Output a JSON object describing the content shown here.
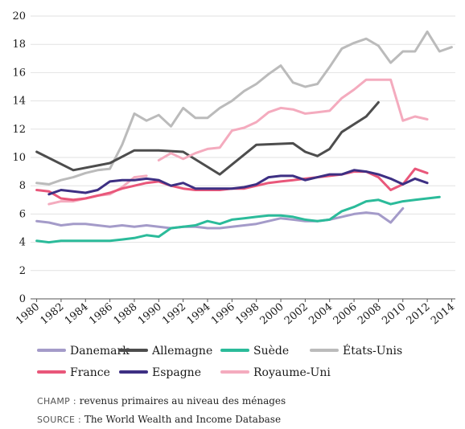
{
  "chart_data": {
    "type": "line",
    "title": "",
    "xlabel": "",
    "ylabel": "",
    "xlim": [
      1979.5,
      2014.3
    ],
    "ylim": [
      0,
      20
    ],
    "yticks": [
      "0",
      "2",
      "4",
      "6",
      "8",
      "10",
      "12",
      "14",
      "16",
      "18",
      "20"
    ],
    "xticks": [
      "1980",
      "1982",
      "1984",
      "1986",
      "1988",
      "1990",
      "1992",
      "1994",
      "1996",
      "1998",
      "2000",
      "2002",
      "2004",
      "2006",
      "2008",
      "2010",
      "2012",
      "2014"
    ],
    "grid": "horizontal",
    "legend_position": "bottom",
    "series": [
      {
        "name": "Danemark",
        "color": "#a49bc9",
        "x": [
          1980,
          1981,
          1982,
          1983,
          1984,
          1985,
          1986,
          1987,
          1988,
          1989,
          1990,
          1991,
          1992,
          1993,
          1994,
          1995,
          1996,
          1997,
          1998,
          1999,
          2000,
          2001,
          2002,
          2003,
          2004,
          2005,
          2006,
          2007,
          2008,
          2009,
          2010
        ],
        "y": [
          5.5,
          5.4,
          5.2,
          5.3,
          5.3,
          5.2,
          5.1,
          5.2,
          5.1,
          5.2,
          5.1,
          5.0,
          5.1,
          5.1,
          5.0,
          5.0,
          5.1,
          5.2,
          5.3,
          5.5,
          5.7,
          5.6,
          5.5,
          5.5,
          5.6,
          5.8,
          6.0,
          6.1,
          6.0,
          5.4,
          6.4
        ]
      },
      {
        "name": "Allemagne",
        "color": "#4d4d4d",
        "x": [
          1980,
          1983,
          1986,
          1988,
          1990,
          1992,
          1995,
          1998,
          2001,
          2002,
          2003,
          2004,
          2005,
          2007,
          2008
        ],
        "y": [
          10.4,
          9.1,
          9.6,
          10.5,
          10.5,
          10.4,
          8.8,
          10.9,
          11.0,
          10.4,
          10.1,
          10.6,
          11.8,
          12.9,
          13.9
        ]
      },
      {
        "name": "Suède",
        "color": "#2bbb9a",
        "x": [
          1980,
          1981,
          1982,
          1983,
          1984,
          1985,
          1986,
          1987,
          1988,
          1989,
          1990,
          1991,
          1992,
          1993,
          1994,
          1995,
          1996,
          1997,
          1998,
          1999,
          2000,
          2001,
          2002,
          2003,
          2004,
          2005,
          2006,
          2007,
          2008,
          2009,
          2010,
          2011,
          2012,
          2013
        ],
        "y": [
          4.1,
          4.0,
          4.1,
          4.1,
          4.1,
          4.1,
          4.1,
          4.2,
          4.3,
          4.5,
          4.4,
          5.0,
          5.1,
          5.2,
          5.5,
          5.3,
          5.6,
          5.7,
          5.8,
          5.9,
          5.9,
          5.8,
          5.6,
          5.5,
          5.6,
          6.2,
          6.5,
          6.9,
          7.0,
          6.7,
          6.9,
          7.0,
          7.1,
          7.2
        ]
      },
      {
        "name": "États-Unis",
        "color": "#bbbbbb",
        "x": [
          1980,
          1981,
          1982,
          1983,
          1984,
          1985,
          1986,
          1987,
          1988,
          1989,
          1990,
          1991,
          1992,
          1993,
          1994,
          1995,
          1996,
          1997,
          1998,
          1999,
          2000,
          2001,
          2002,
          2003,
          2004,
          2005,
          2006,
          2007,
          2008,
          2009,
          2010,
          2011,
          2012,
          2013,
          2014
        ],
        "y": [
          8.2,
          8.1,
          8.4,
          8.6,
          8.9,
          9.1,
          9.2,
          10.9,
          13.1,
          12.6,
          13.0,
          12.2,
          13.5,
          12.8,
          12.8,
          13.5,
          14.0,
          14.7,
          15.2,
          15.9,
          16.5,
          15.3,
          15.0,
          15.2,
          16.4,
          17.7,
          18.1,
          18.4,
          17.9,
          16.7,
          17.5,
          17.5,
          18.9,
          17.5,
          17.8
        ]
      },
      {
        "name": "France",
        "color": "#e9577a",
        "x": [
          1980,
          1981,
          1982,
          1983,
          1984,
          1985,
          1986,
          1987,
          1988,
          1989,
          1990,
          1991,
          1992,
          1993,
          1994,
          1995,
          1996,
          1997,
          1998,
          1999,
          2000,
          2001,
          2002,
          2003,
          2004,
          2005,
          2006,
          2007,
          2008,
          2009,
          2010,
          2011,
          2012
        ],
        "y": [
          7.7,
          7.6,
          7.1,
          7.0,
          7.1,
          7.3,
          7.5,
          7.8,
          8.0,
          8.2,
          8.3,
          8.0,
          7.8,
          7.7,
          7.7,
          7.7,
          7.8,
          7.8,
          8.0,
          8.2,
          8.3,
          8.4,
          8.5,
          8.6,
          8.7,
          8.8,
          9.0,
          9.0,
          8.6,
          7.7,
          8.1,
          9.2,
          8.9
        ]
      },
      {
        "name": "Espagne",
        "color": "#3d2f83",
        "x": [
          1981,
          1982,
          1983,
          1984,
          1985,
          1986,
          1987,
          1988,
          1989,
          1990,
          1991,
          1992,
          1993,
          1994,
          1995,
          1996,
          1997,
          1998,
          1999,
          2000,
          2001,
          2002,
          2003,
          2004,
          2005,
          2006,
          2007,
          2008,
          2009,
          2010,
          2011,
          2012
        ],
        "y": [
          7.4,
          7.7,
          7.6,
          7.5,
          7.7,
          8.3,
          8.4,
          8.4,
          8.5,
          8.4,
          8.0,
          8.2,
          7.8,
          7.8,
          7.8,
          7.8,
          7.9,
          8.1,
          8.6,
          8.7,
          8.7,
          8.4,
          8.6,
          8.8,
          8.8,
          9.1,
          9.0,
          8.8,
          8.5,
          8.1,
          8.5,
          8.2
        ]
      },
      {
        "name": "Royaume-Uni",
        "color": "#f4abbe",
        "segments": [
          {
            "x": [
              1981,
              1982,
              1983,
              1984,
              1985,
              1986,
              1987,
              1988,
              1989
            ],
            "y": [
              6.7,
              6.9,
              6.9,
              7.1,
              7.3,
              7.4,
              7.9,
              8.6,
              8.7
            ]
          },
          {
            "x": [
              1990,
              1991,
              1992,
              1993,
              1994,
              1995,
              1996,
              1997,
              1998,
              1999,
              2000,
              2001,
              2002,
              2003,
              2004,
              2005,
              2006,
              2007,
              2008,
              2009,
              2010,
              2011,
              2012
            ],
            "y": [
              9.8,
              10.3,
              9.9,
              10.3,
              10.6,
              10.7,
              11.9,
              12.1,
              12.5,
              13.2,
              13.5,
              13.4,
              13.1,
              13.2,
              13.3,
              14.2,
              14.8,
              15.5,
              15.5,
              15.5,
              12.6,
              12.9,
              12.7
            ]
          }
        ]
      }
    ]
  },
  "legend": {
    "row1": [
      {
        "name": "Danemark",
        "color": "#a49bc9"
      },
      {
        "name": "Allemagne",
        "color": "#4d4d4d"
      },
      {
        "name": "Suède",
        "color": "#2bbb9a"
      },
      {
        "name": "États-Unis",
        "color": "#bbbbbb"
      }
    ],
    "row2": [
      {
        "name": "France",
        "color": "#e9577a"
      },
      {
        "name": "Espagne",
        "color": "#3d2f83"
      },
      {
        "name": "Royaume-Uni",
        "color": "#f4abbe"
      }
    ]
  },
  "notes": {
    "champ_label": "CHAMP : ",
    "champ_text": "revenus primaires au niveau des ménages",
    "source_label": "SOURCE : ",
    "source_text": "The World Wealth and Income Database"
  }
}
